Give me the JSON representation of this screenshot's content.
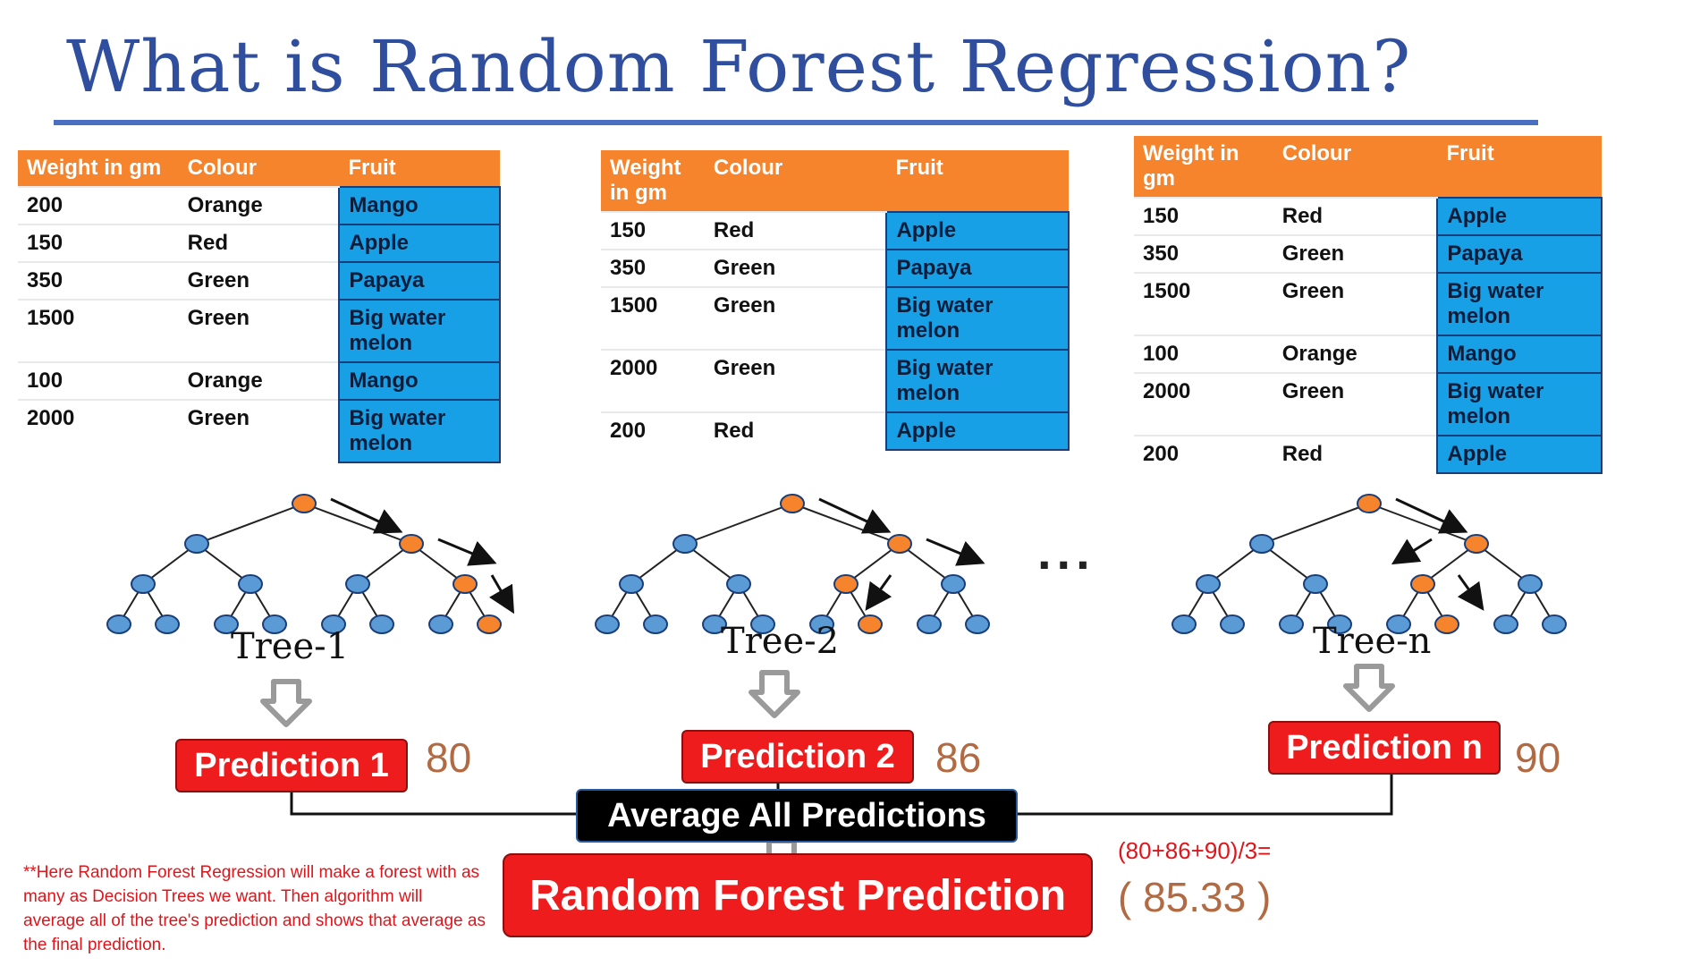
{
  "title": "What is Random Forest Regression?",
  "tables": [
    {
      "headers": [
        "Weight in gm",
        "Colour",
        "Fruit"
      ],
      "rows": [
        [
          "200",
          "Orange",
          "Mango"
        ],
        [
          "150",
          "Red",
          "Apple"
        ],
        [
          "350",
          "Green",
          "Papaya"
        ],
        [
          "1500",
          "Green",
          "Big water melon"
        ],
        [
          "100",
          "Orange",
          "Mango"
        ],
        [
          "2000",
          "Green",
          "Big water melon"
        ]
      ]
    },
    {
      "headers": [
        "Weight in gm",
        "Colour",
        "Fruit"
      ],
      "rows": [
        [
          "150",
          "Red",
          "Apple"
        ],
        [
          "350",
          "Green",
          "Papaya"
        ],
        [
          "1500",
          "Green",
          "Big water melon"
        ],
        [
          "2000",
          "Green",
          "Big water melon"
        ],
        [
          "200",
          "Red",
          "Apple"
        ]
      ]
    },
    {
      "headers": [
        "Weight in gm",
        "Colour",
        "Fruit"
      ],
      "rows": [
        [
          "150",
          "Red",
          "Apple"
        ],
        [
          "350",
          "Green",
          "Papaya"
        ],
        [
          "1500",
          "Green",
          "Big water melon"
        ],
        [
          "100",
          "Orange",
          "Mango"
        ],
        [
          "2000",
          "Green",
          "Big water melon"
        ],
        [
          "200",
          "Red",
          "Apple"
        ]
      ]
    }
  ],
  "trees": [
    {
      "label": "Tree-1",
      "prediction": "Prediction 1",
      "value": "80"
    },
    {
      "label": "Tree-2",
      "prediction": "Prediction 2",
      "value": "86"
    },
    {
      "label": "Tree-n",
      "prediction": "Prediction n",
      "value": "90"
    }
  ],
  "ellipsis": "...",
  "average_label": "Average All Predictions",
  "final_label": "Random Forest Prediction",
  "formula": "(80+86+90)/3=",
  "final_value": "( 85.33 )",
  "note": "**Here Random Forest Regression will make a forest with as many as Decision Trees we want. Then algorithm will average all of the tree's prediction and shows that average as the final prediction.",
  "colors": {
    "title": "#2f4f9e",
    "header": "#f5842c",
    "fruit_cell": "#17a0e6",
    "node_blue": "#5b9bd5",
    "node_orange": "#f5842c",
    "prediction_box": "#ee1c1c",
    "value_text": "#b26a43",
    "note_text": "#e0151b"
  }
}
